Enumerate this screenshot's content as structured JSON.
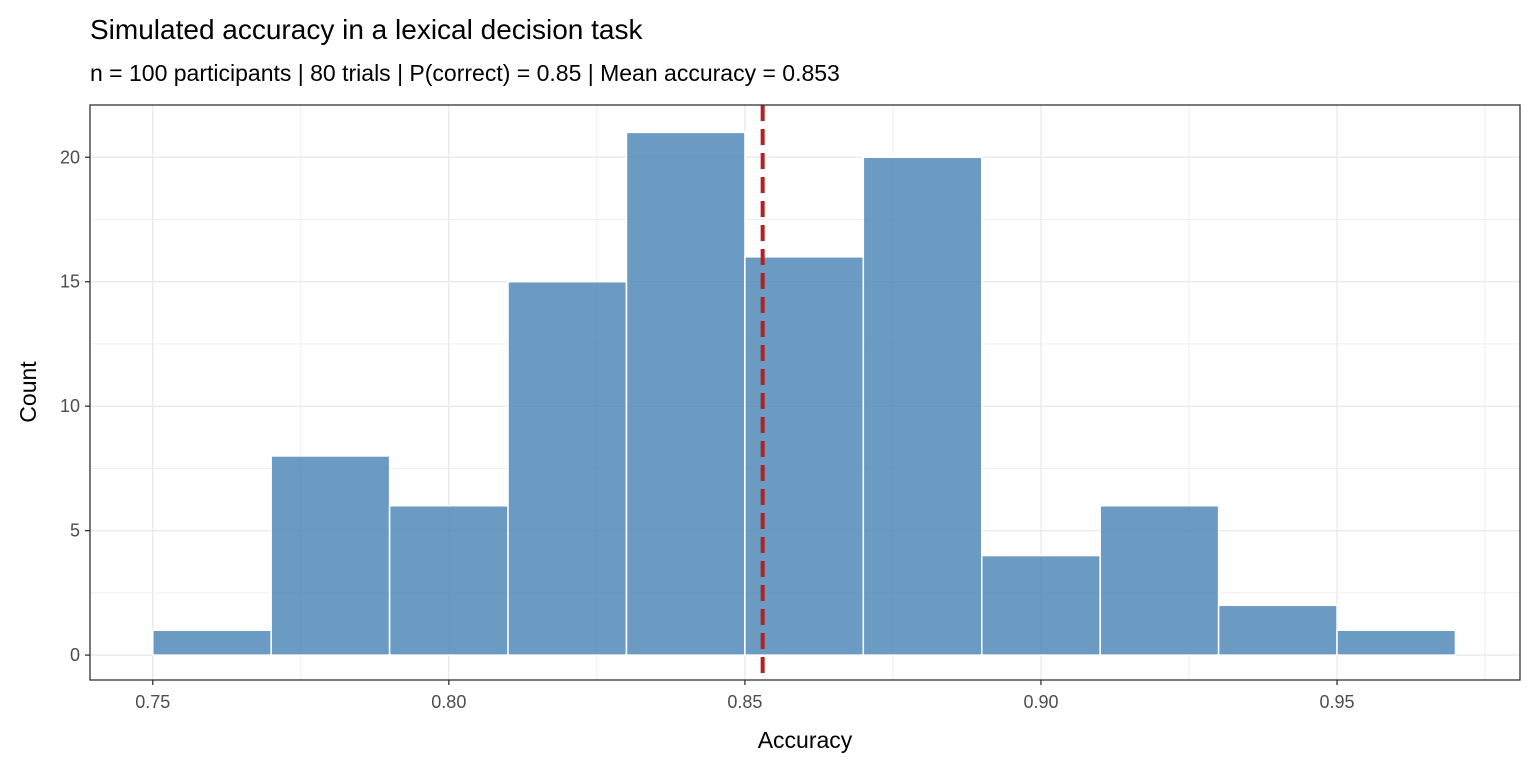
{
  "chart_data": {
    "type": "bar",
    "title": "Simulated accuracy in a lexical decision task",
    "subtitle": "n = 100 participants | 80 trials | P(correct) = 0.85 | Mean accuracy = 0.853",
    "xlabel": "Accuracy",
    "ylabel": "Count",
    "bin_edges": [
      0.75,
      0.77,
      0.79,
      0.81,
      0.83,
      0.85,
      0.87,
      0.89,
      0.91,
      0.93,
      0.95,
      0.97
    ],
    "values": [
      1,
      8,
      6,
      15,
      21,
      16,
      20,
      4,
      6,
      2,
      1
    ],
    "mean_line": 0.853,
    "xlim": [
      0.7394,
      0.9809
    ],
    "ylim": [
      -1.0,
      22.1
    ],
    "xticks": [
      0.75,
      0.8,
      0.85,
      0.9,
      0.95
    ],
    "xtick_labels": [
      "0.75",
      "0.80",
      "0.85",
      "0.90",
      "0.95"
    ],
    "yticks": [
      0,
      5,
      10,
      15,
      20
    ],
    "ytick_labels": [
      "0",
      "5",
      "10",
      "15",
      "20"
    ],
    "grid": true,
    "colors": {
      "bar": "#4682B4",
      "mean_line": "#B22222",
      "grid": "#EBEBEB"
    }
  }
}
